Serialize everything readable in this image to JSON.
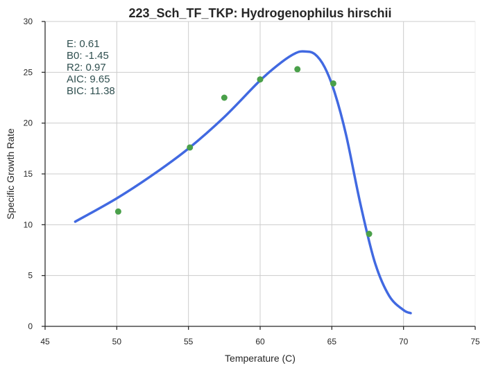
{
  "chart_data": {
    "type": "scatter",
    "title": "223_Sch_TF_TKP: Hydrogenophilus hirschii",
    "xlabel": "Temperature (C)",
    "ylabel": "Specific Growth Rate",
    "xlim": [
      45,
      75
    ],
    "ylim": [
      0,
      30
    ],
    "xticks": [
      45,
      50,
      55,
      60,
      65,
      70,
      75
    ],
    "yticks": [
      0,
      5,
      10,
      15,
      20,
      25,
      30
    ],
    "grid": true,
    "annotations": [
      "E:  0.61",
      "B0:  -1.45",
      "R2:  0.97",
      "AIC: 9.65",
      "BIC: 11.38"
    ],
    "colors": {
      "points": "#4aa04a",
      "fit": "#4169e1"
    },
    "series": [
      {
        "type": "scatter",
        "x": [
          50.1,
          55.1,
          57.5,
          60.0,
          62.6,
          65.1,
          67.6
        ],
        "y": [
          11.3,
          17.6,
          22.5,
          24.3,
          25.3,
          23.9,
          9.1
        ]
      },
      {
        "type": "line",
        "x": [
          47.1,
          50,
          52.5,
          55,
          57.5,
          60,
          61.5,
          62.5,
          63.1,
          63.8,
          64.5,
          65.2,
          66,
          67,
          68,
          69,
          70,
          70.5
        ],
        "y": [
          10.3,
          12.6,
          14.9,
          17.5,
          20.6,
          24.2,
          26.0,
          26.9,
          27.05,
          26.8,
          25.5,
          23.0,
          18.8,
          12.0,
          6.3,
          3.0,
          1.6,
          1.3
        ]
      }
    ]
  }
}
